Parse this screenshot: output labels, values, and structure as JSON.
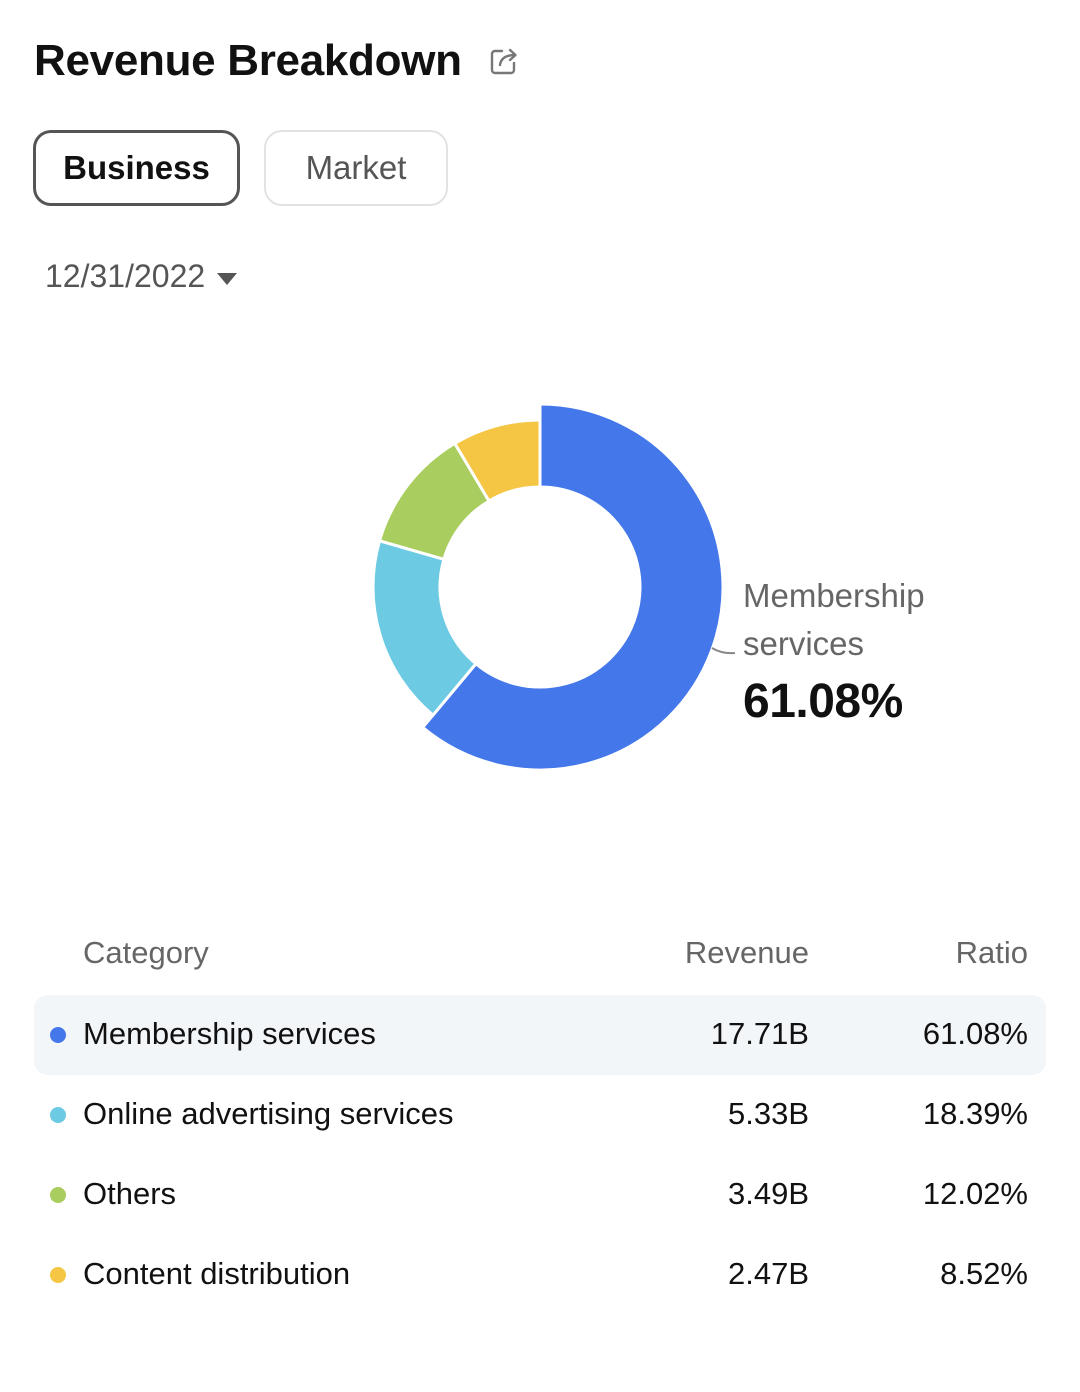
{
  "header": {
    "title": "Revenue Breakdown",
    "share_icon": "share-icon"
  },
  "tabs": [
    {
      "label": "Business",
      "active": true
    },
    {
      "label": "Market",
      "active": false
    }
  ],
  "date_select": {
    "value": "12/31/2022",
    "icon": "caret-down-icon"
  },
  "callout": {
    "label": "Membership services",
    "value": "61.08%"
  },
  "table": {
    "headers": {
      "category": "Category",
      "revenue": "Revenue",
      "ratio": "Ratio"
    },
    "rows": [
      {
        "name": "Membership services",
        "revenue": "17.71B",
        "ratio": "61.08%",
        "color": "#4477ea"
      },
      {
        "name": "Online advertising services",
        "revenue": "5.33B",
        "ratio": "18.39%",
        "color": "#6ccae3"
      },
      {
        "name": "Others",
        "revenue": "3.49B",
        "ratio": "12.02%",
        "color": "#a9cd5e"
      },
      {
        "name": "Content distribution",
        "revenue": "2.47B",
        "ratio": "8.52%",
        "color": "#f5c644"
      }
    ]
  },
  "chart_data": {
    "type": "pie",
    "donut": true,
    "categories": [
      "Membership services",
      "Online advertising services",
      "Others",
      "Content distribution"
    ],
    "values": [
      61.08,
      18.39,
      12.02,
      8.52
    ],
    "colors": [
      "#4477ea",
      "#6ccae3",
      "#a9cd5e",
      "#f5c644"
    ],
    "highlighted": "Membership services"
  }
}
